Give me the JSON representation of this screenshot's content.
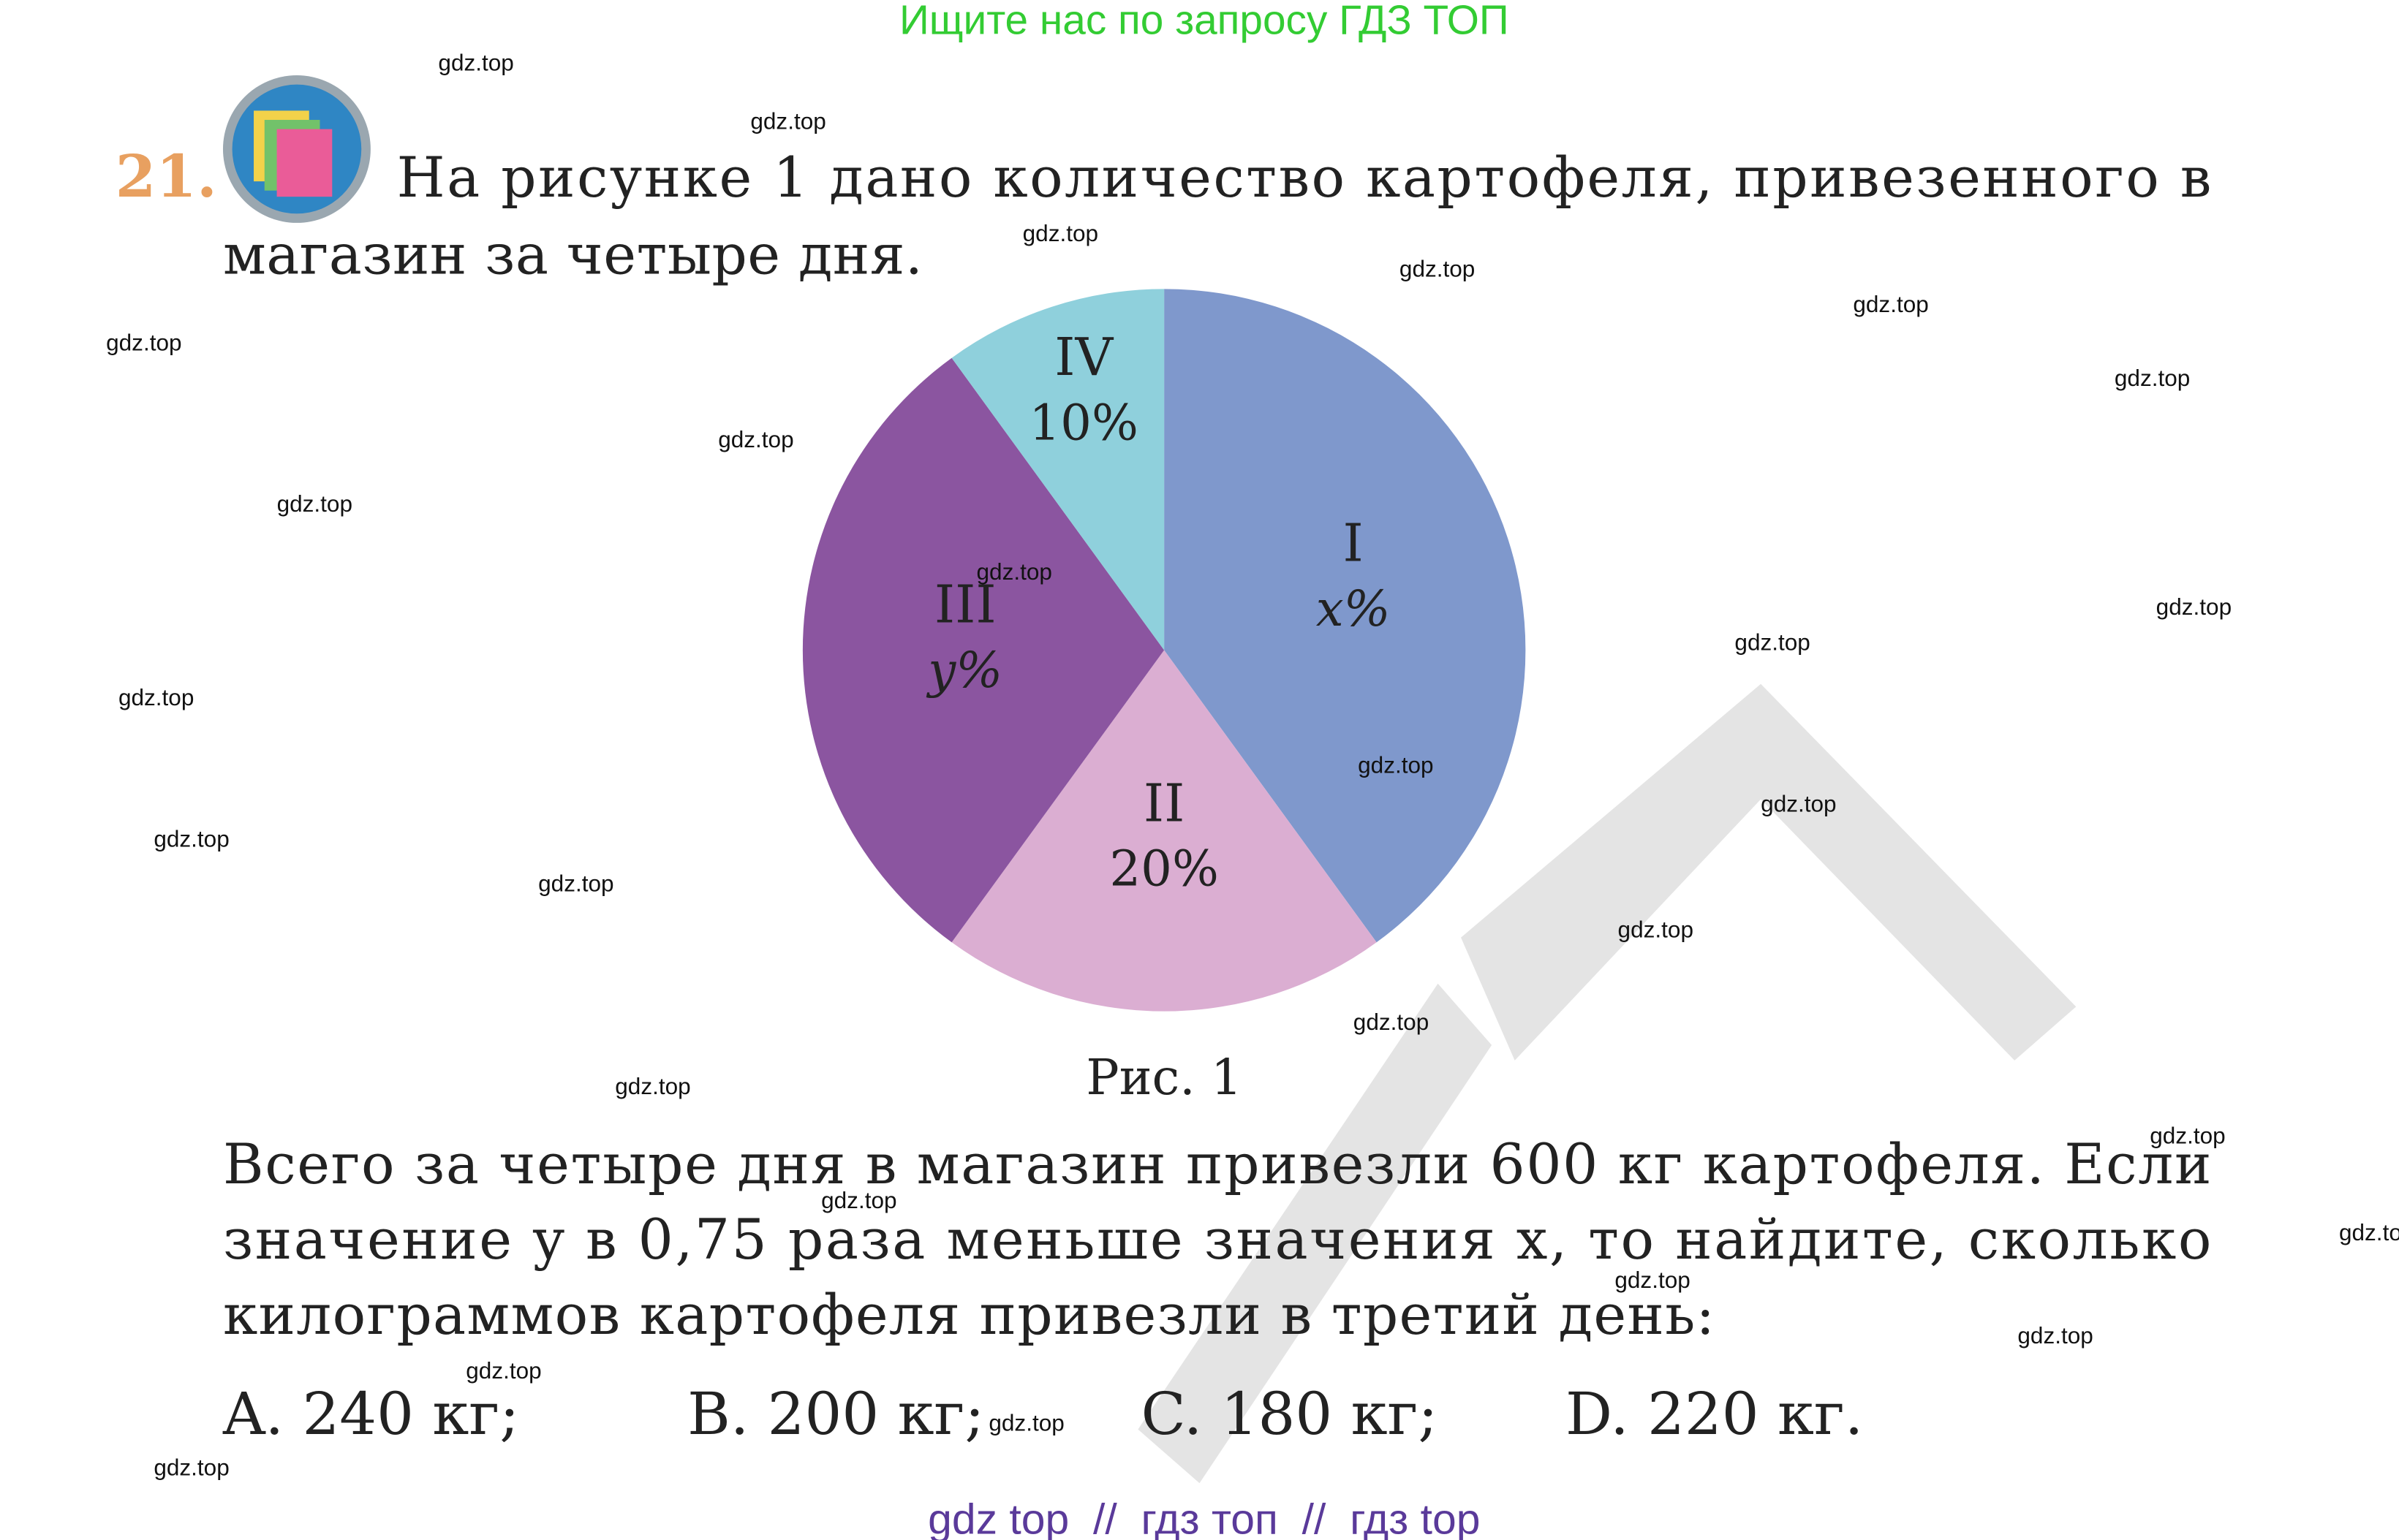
{
  "banner": "Ищите нас по запросу ГДЗ ТОП",
  "problem": {
    "number": "21.",
    "lines": [
      "На рисунке 1 дано количество картофеля, привезенного в",
      "магазин за четыре дня."
    ]
  },
  "figure": {
    "type": "pie",
    "slices": [
      {
        "label": "I",
        "text": "x%",
        "value": 40,
        "color": "#7f98cc"
      },
      {
        "label": "II",
        "text": "20%",
        "value": 20,
        "color": "#dbaed2"
      },
      {
        "label": "III",
        "text": "y%",
        "value": 30,
        "color": "#8b55a0"
      },
      {
        "label": "IV",
        "text": "10%",
        "value": 10,
        "color": "#8fd0dc"
      }
    ],
    "caption": "Рис. 1"
  },
  "question": [
    "Всего за четыре дня в магазин привезли 600 кг картофеля. Если",
    "значение y в 0,75 раза меньше значения x, то найдите, сколько",
    "килограммов картофеля привезли в третий день:"
  ],
  "options": [
    "A. 240 кг;",
    "B. 200 кг;",
    "C. 180 кг;",
    "D. 220 кг."
  ],
  "watermark": "gdz.top",
  "footer": "gdz top  //  гдз топ  //  гдз top"
}
